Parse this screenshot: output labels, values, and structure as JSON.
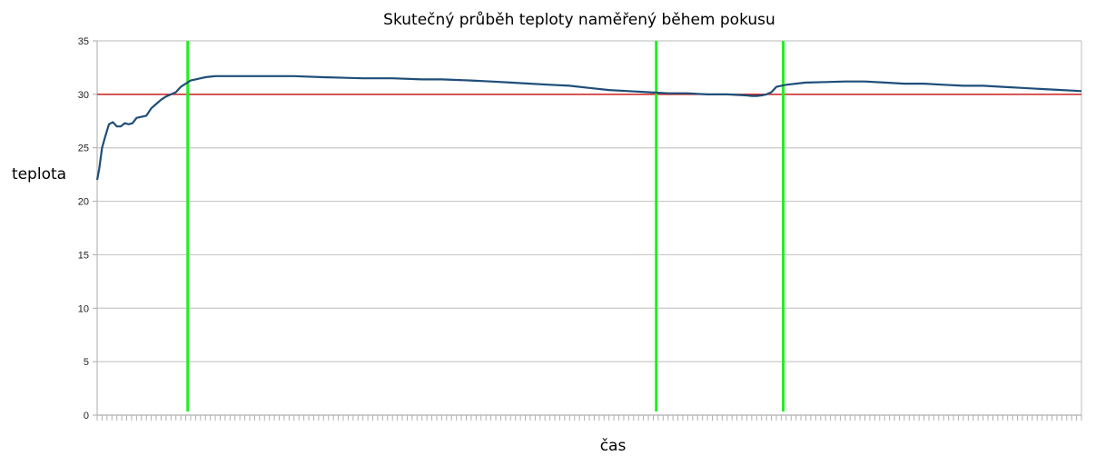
{
  "chart_data": {
    "type": "line",
    "title": "Skutečný průběh teploty naměřený během pokusu",
    "xlabel": "čas",
    "ylabel": "teplota",
    "ylim": [
      0,
      35
    ],
    "yticks": [
      0,
      5,
      10,
      15,
      20,
      25,
      30,
      35
    ],
    "ytick_labels": [
      "0",
      "5",
      "10",
      "15",
      "20",
      "25",
      "30",
      "35"
    ],
    "xlim": [
      0,
      1000
    ],
    "grid": true,
    "legend": "none",
    "series": [
      {
        "color": "#1f4e79",
        "x": [
          0,
          2,
          5,
          8,
          12,
          16,
          20,
          24,
          28,
          32,
          36,
          40,
          45,
          50,
          55,
          60,
          65,
          70,
          75,
          80,
          85,
          90,
          95,
          100,
          105,
          110,
          115,
          120,
          130,
          140,
          145,
          150,
          200,
          230,
          270,
          280,
          300,
          330,
          350,
          380,
          400,
          420,
          440,
          460,
          480,
          500,
          520,
          540,
          560,
          580,
          600,
          610,
          620,
          640,
          660,
          665,
          670,
          675,
          680,
          685,
          690,
          700,
          720,
          740,
          760,
          770,
          780,
          800,
          820,
          840,
          860,
          880,
          900,
          920,
          940,
          960,
          980,
          990,
          1000
        ],
        "y": [
          22.0,
          23.0,
          25.0,
          26.0,
          27.2,
          27.4,
          27.0,
          27.0,
          27.3,
          27.2,
          27.3,
          27.8,
          27.9,
          28.0,
          28.7,
          29.1,
          29.5,
          29.8,
          30.0,
          30.2,
          30.7,
          31.0,
          31.3,
          31.4,
          31.5,
          31.6,
          31.65,
          31.7,
          31.7,
          31.7,
          31.7,
          31.7,
          31.7,
          31.6,
          31.5,
          31.5,
          31.5,
          31.4,
          31.4,
          31.3,
          31.2,
          31.1,
          31.0,
          30.9,
          30.8,
          30.6,
          30.4,
          30.3,
          30.2,
          30.1,
          30.1,
          30.05,
          30.0,
          30.0,
          29.9,
          29.85,
          29.85,
          29.9,
          30.0,
          30.2,
          30.7,
          30.9,
          31.1,
          31.15,
          31.2,
          31.2,
          31.2,
          31.1,
          31.0,
          31.0,
          30.9,
          30.8,
          30.8,
          30.7,
          30.6,
          30.5,
          30.4,
          30.35,
          30.3
        ]
      }
    ],
    "reference_lines": {
      "horizontal": [
        {
          "y": 30,
          "color": "#cc2222"
        }
      ],
      "vertical": [
        {
          "x": 92,
          "color": "#22ee22"
        },
        {
          "x": 568,
          "color": "#22ee22"
        },
        {
          "x": 697,
          "color": "#22ee22"
        }
      ]
    },
    "x_minor_tick_count": 200
  }
}
